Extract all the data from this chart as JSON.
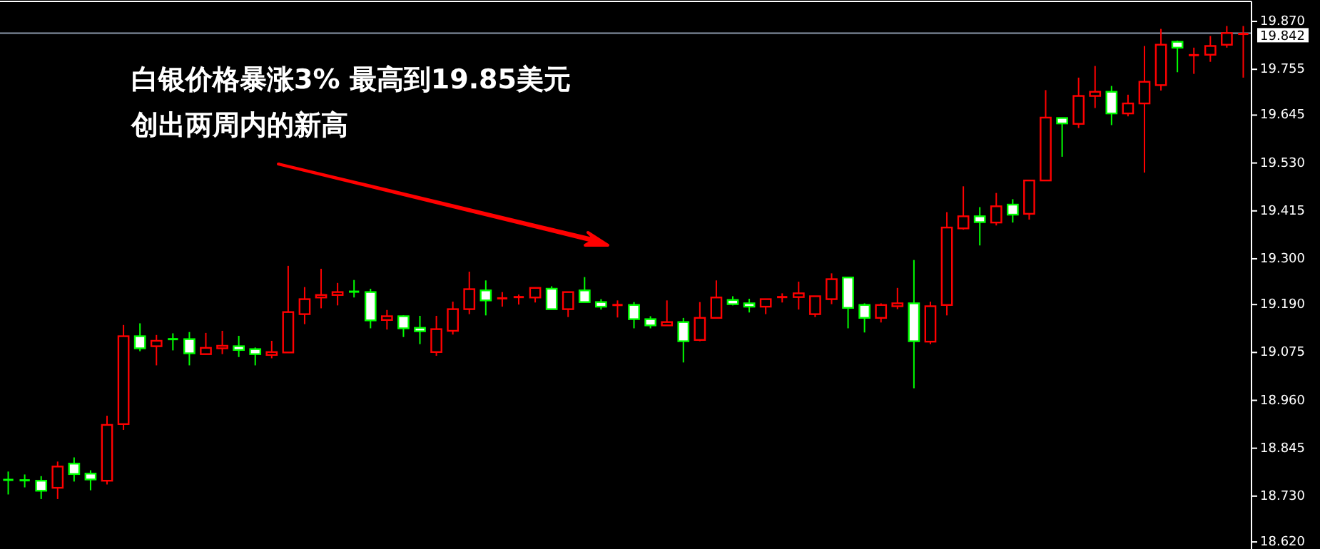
{
  "chart_data": {
    "type": "candlestick",
    "categories": [
      null,
      null,
      null,
      null,
      null,
      null,
      null,
      null,
      null,
      null,
      null,
      null,
      null,
      null,
      null,
      null,
      null,
      null,
      null,
      null,
      null,
      null,
      null,
      null,
      null,
      null,
      null,
      null,
      null,
      null,
      null,
      null,
      null,
      null,
      null,
      null,
      null,
      null,
      null,
      null,
      null,
      null,
      null,
      null,
      null,
      null,
      null,
      null,
      null,
      null,
      null,
      null,
      null,
      null,
      null,
      null,
      null,
      null,
      null,
      null,
      null,
      null,
      null,
      null,
      null,
      null,
      null,
      null,
      null,
      null,
      null,
      null,
      null,
      null,
      null,
      null
    ],
    "ohlc": [
      [
        18.769,
        18.789,
        18.734,
        18.769
      ],
      [
        18.768,
        18.782,
        18.751,
        18.768
      ],
      [
        18.767,
        18.778,
        18.723,
        18.743
      ],
      [
        18.75,
        18.813,
        18.723,
        18.801
      ],
      [
        18.808,
        18.823,
        18.765,
        18.783
      ],
      [
        18.784,
        18.792,
        18.744,
        18.77
      ],
      [
        18.767,
        18.923,
        18.758,
        18.901
      ],
      [
        18.903,
        19.141,
        18.889,
        19.114
      ],
      [
        19.114,
        19.145,
        19.078,
        19.085
      ],
      [
        19.09,
        19.117,
        19.044,
        19.103
      ],
      [
        19.107,
        19.121,
        19.08,
        19.107
      ],
      [
        19.107,
        19.124,
        19.044,
        19.073
      ],
      [
        19.071,
        19.122,
        19.071,
        19.086
      ],
      [
        19.085,
        19.127,
        19.071,
        19.091
      ],
      [
        19.09,
        19.115,
        19.064,
        19.081
      ],
      [
        19.083,
        19.087,
        19.044,
        19.071
      ],
      [
        19.069,
        19.103,
        19.061,
        19.076
      ],
      [
        19.075,
        19.283,
        19.075,
        19.172
      ],
      [
        19.167,
        19.232,
        19.143,
        19.203
      ],
      [
        19.207,
        19.276,
        19.181,
        19.213
      ],
      [
        19.213,
        19.242,
        19.188,
        19.22
      ],
      [
        19.221,
        19.249,
        19.207,
        19.221
      ],
      [
        19.22,
        19.228,
        19.133,
        19.152
      ],
      [
        19.153,
        19.177,
        19.13,
        19.162
      ],
      [
        19.162,
        19.164,
        19.112,
        19.133
      ],
      [
        19.134,
        19.163,
        19.095,
        19.126
      ],
      [
        19.076,
        19.163,
        19.067,
        19.131
      ],
      [
        19.127,
        19.197,
        19.118,
        19.179
      ],
      [
        19.179,
        19.269,
        19.167,
        19.227
      ],
      [
        19.224,
        19.248,
        19.164,
        19.2
      ],
      [
        19.205,
        19.22,
        19.185,
        19.205
      ],
      [
        19.208,
        19.214,
        19.19,
        19.208
      ],
      [
        19.207,
        19.23,
        19.195,
        19.23
      ],
      [
        19.228,
        19.234,
        19.179,
        19.179
      ],
      [
        19.179,
        19.22,
        19.16,
        19.22
      ],
      [
        19.224,
        19.256,
        19.196,
        19.196
      ],
      [
        19.196,
        19.203,
        19.178,
        19.185
      ],
      [
        19.189,
        19.2,
        19.159,
        19.189
      ],
      [
        19.189,
        19.196,
        19.133,
        19.155
      ],
      [
        19.155,
        19.162,
        19.133,
        19.14
      ],
      [
        19.14,
        19.2,
        19.14,
        19.148
      ],
      [
        19.148,
        19.158,
        19.051,
        19.102
      ],
      [
        19.105,
        19.196,
        19.102,
        19.158
      ],
      [
        19.158,
        19.248,
        19.158,
        19.207
      ],
      [
        19.201,
        19.21,
        19.188,
        19.191
      ],
      [
        19.193,
        19.204,
        19.171,
        19.185
      ],
      [
        19.185,
        19.203,
        19.167,
        19.203
      ],
      [
        19.208,
        19.217,
        19.195,
        19.208
      ],
      [
        19.208,
        19.245,
        19.178,
        19.217
      ],
      [
        19.167,
        19.21,
        19.16,
        19.21
      ],
      [
        19.203,
        19.265,
        19.191,
        19.251
      ],
      [
        19.255,
        19.255,
        19.133,
        19.182
      ],
      [
        19.189,
        19.193,
        19.123,
        19.158
      ],
      [
        19.158,
        19.193,
        19.147,
        19.189
      ],
      [
        19.186,
        19.23,
        19.179,
        19.193
      ],
      [
        19.193,
        19.297,
        18.989,
        19.102
      ],
      [
        19.101,
        19.197,
        19.095,
        19.186
      ],
      [
        19.189,
        19.412,
        19.164,
        19.375
      ],
      [
        19.373,
        19.474,
        19.37,
        19.402
      ],
      [
        19.402,
        19.424,
        19.332,
        19.388
      ],
      [
        19.387,
        19.458,
        19.38,
        19.426
      ],
      [
        19.43,
        19.443,
        19.387,
        19.406
      ],
      [
        19.408,
        19.488,
        19.394,
        19.488
      ],
      [
        19.488,
        19.705,
        19.488,
        19.639
      ],
      [
        19.638,
        19.638,
        19.545,
        19.625
      ],
      [
        19.624,
        19.735,
        19.614,
        19.691
      ],
      [
        19.691,
        19.763,
        19.662,
        19.701
      ],
      [
        19.701,
        19.715,
        19.621,
        19.649
      ],
      [
        19.649,
        19.694,
        19.642,
        19.673
      ],
      [
        19.673,
        19.811,
        19.507,
        19.725
      ],
      [
        19.717,
        19.852,
        19.704,
        19.814
      ],
      [
        19.821,
        19.824,
        19.748,
        19.807
      ],
      [
        19.789,
        19.807,
        19.744,
        19.789
      ],
      [
        19.79,
        19.835,
        19.773,
        19.811
      ],
      [
        19.814,
        19.859,
        19.807,
        19.842
      ],
      [
        19.84,
        19.859,
        19.735,
        19.84
      ]
    ],
    "colors": [
      "#00ff00",
      "#00ff00",
      "#00ff00",
      "#ff0000",
      "#00ff00",
      "#00ff00",
      "#ff0000",
      "#ff0000",
      "#00ff00",
      "#ff0000",
      "#00ff00",
      "#00ff00",
      "#ff0000",
      "#ff0000",
      "#00ff00",
      "#00ff00",
      "#ff0000",
      "#ff0000",
      "#ff0000",
      "#ff0000",
      "#ff0000",
      "#00ff00",
      "#00ff00",
      "#ff0000",
      "#00ff00",
      "#00ff00",
      "#ff0000",
      "#ff0000",
      "#ff0000",
      "#00ff00",
      "#ff0000",
      "#ff0000",
      "#ff0000",
      "#00ff00",
      "#ff0000",
      "#00ff00",
      "#00ff00",
      "#ff0000",
      "#00ff00",
      "#00ff00",
      "#ff0000",
      "#00ff00",
      "#ff0000",
      "#ff0000",
      "#00ff00",
      "#00ff00",
      "#ff0000",
      "#ff0000",
      "#ff0000",
      "#ff0000",
      "#ff0000",
      "#00ff00",
      "#00ff00",
      "#ff0000",
      "#ff0000",
      "#00ff00",
      "#ff0000",
      "#ff0000",
      "#ff0000",
      "#00ff00",
      "#ff0000",
      "#00ff00",
      "#ff0000",
      "#ff0000",
      "#00ff00",
      "#ff0000",
      "#ff0000",
      "#00ff00",
      "#ff0000",
      "#ff0000",
      "#ff0000",
      "#00ff00",
      "#ff0000",
      "#ff0000",
      "#ff0000",
      "#ff0000"
    ],
    "ylim": [
      18.603,
      19.918
    ],
    "yticks": [
      {
        "value": 18.62,
        "label": "18.620"
      },
      {
        "value": 18.73,
        "label": "18.730"
      },
      18.845,
      {
        "value": 18.96,
        "label": "18.960"
      },
      19.075,
      {
        "value": 19.19,
        "label": "19.190"
      },
      {
        "value": 19.3,
        "label": "19.300"
      },
      19.415,
      {
        "value": 19.53,
        "label": "19.530"
      },
      19.645,
      19.755,
      {
        "value": 19.87,
        "label": "19.870"
      }
    ],
    "ref_lines": [
      {
        "axis": "y",
        "value": 19.842,
        "label": "19.842",
        "color": "#8a97aa"
      }
    ],
    "annotations": [
      "白银价格暴涨3% 最高到19.85美元",
      "创出两周内的新高"
    ]
  }
}
